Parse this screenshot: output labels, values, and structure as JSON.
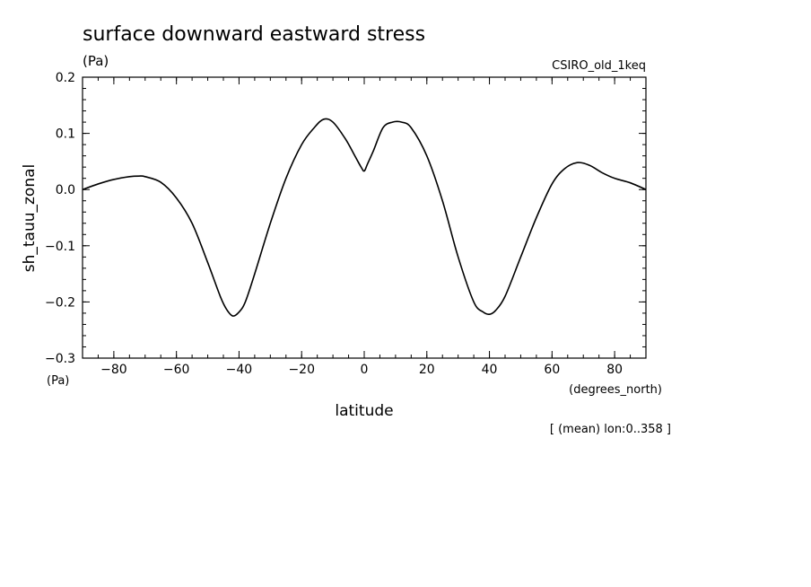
{
  "chart_data": {
    "type": "line",
    "title": "surface downward eastward stress",
    "units_top": "(Pa)",
    "model_label": "CSIRO_old_1keq",
    "ylabel": "sh_tauu_zonal",
    "y_units": "(Pa)",
    "xlabel": "latitude",
    "x_units": "(degrees_north)",
    "footnote": "[ (mean) lon:0..358 ]",
    "xlim": [
      -90,
      90
    ],
    "ylim": [
      -0.3,
      0.2
    ],
    "x_ticks": [
      -80,
      -60,
      -40,
      -20,
      0,
      20,
      40,
      60,
      80
    ],
    "x_tick_labels": [
      "−80",
      "−60",
      "−40",
      "−20",
      "0",
      "20",
      "40",
      "60",
      "80"
    ],
    "y_ticks": [
      -0.3,
      -0.2,
      -0.1,
      0.0,
      0.1,
      0.2
    ],
    "y_tick_labels": [
      "−0.3",
      "−0.2",
      "−0.1",
      "0.0",
      "0.1",
      "0.2"
    ],
    "grid": false,
    "line_color": "#000000",
    "series": [
      {
        "x": [
          -90,
          -85,
          -80,
          -75,
          -72,
          -70,
          -65,
          -60,
          -55,
          -50,
          -46,
          -44,
          -42,
          -40,
          -38,
          -35,
          -30,
          -25,
          -20,
          -16,
          -13,
          -10,
          -6,
          -3,
          -1,
          0,
          1,
          3,
          6,
          9,
          12,
          15,
          20,
          25,
          30,
          35,
          38,
          40,
          42,
          45,
          50,
          55,
          60,
          64,
          68,
          72,
          76,
          80,
          85,
          90
        ],
        "y": [
          0.0,
          0.01,
          0.018,
          0.023,
          0.024,
          0.023,
          0.013,
          -0.015,
          -0.06,
          -0.13,
          -0.19,
          -0.213,
          -0.225,
          -0.218,
          -0.2,
          -0.15,
          -0.06,
          0.02,
          0.08,
          0.11,
          0.125,
          0.12,
          0.09,
          0.06,
          0.04,
          0.033,
          0.045,
          0.07,
          0.11,
          0.12,
          0.12,
          0.11,
          0.06,
          -0.02,
          -0.12,
          -0.2,
          -0.218,
          -0.222,
          -0.215,
          -0.19,
          -0.12,
          -0.05,
          0.01,
          0.037,
          0.048,
          0.043,
          0.03,
          0.02,
          0.012,
          0.0
        ]
      }
    ]
  }
}
